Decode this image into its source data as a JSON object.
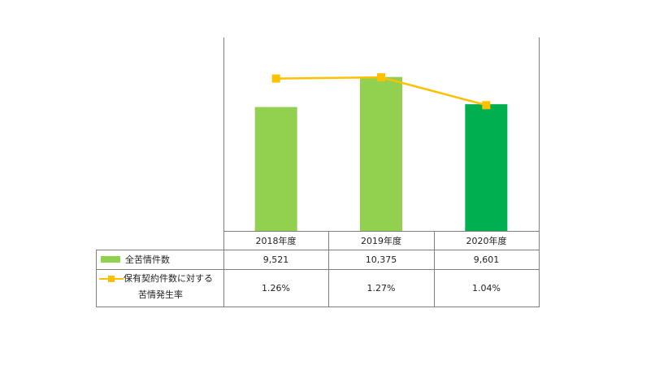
{
  "chart_data": {
    "type": "bar",
    "categories": [
      "2018年度",
      "2019年度",
      "2020年度"
    ],
    "series": [
      {
        "name": "全苦情件数",
        "kind": "bar",
        "values": [
          9521,
          10375,
          9601
        ],
        "labels": [
          "9,521",
          "10,375",
          "9,601"
        ],
        "colors": [
          "#92d050",
          "#92d050",
          "#00b050"
        ]
      },
      {
        "name_line1": "保有契約件数に対する",
        "name_line2": "苦情発生率",
        "kind": "line",
        "values": [
          1.26,
          1.27,
          1.04
        ],
        "labels": [
          "1.26%",
          "1.27%",
          "1.04%"
        ],
        "color": "#ffc000"
      }
    ],
    "ylim_bars": [
      6000,
      11500
    ],
    "ylim_line": [
      0.0,
      1.6
    ],
    "grid": false,
    "legend_placement": "data-table"
  },
  "colors": {
    "bar": "#92d050",
    "bar_highlight": "#00b050",
    "line": "#ffc000",
    "border": "#7f7f7f"
  }
}
